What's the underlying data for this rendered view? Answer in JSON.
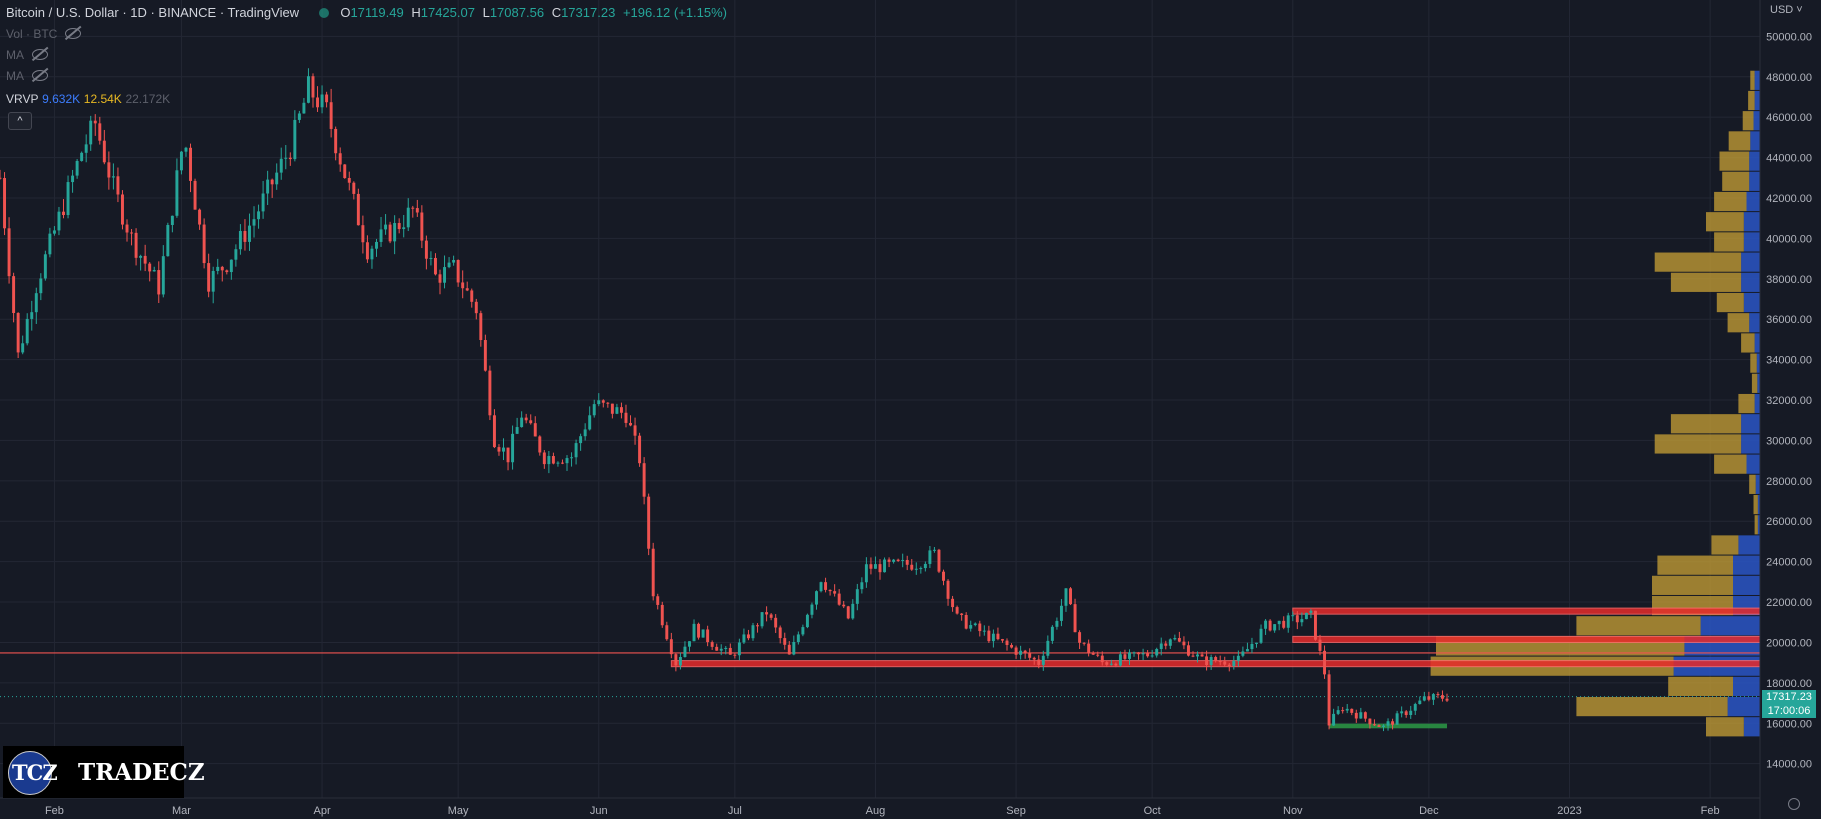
{
  "header": {
    "symbol": "Bitcoin / U.S. Dollar · 1D · BINANCE · TradingView",
    "ohlc": {
      "o": "17119.49",
      "h": "17425.07",
      "l": "17087.56",
      "c": "17317.23",
      "change": "+196.12 (+1.15%)"
    },
    "indicators": [
      "Vol · BTC",
      "MA",
      "MA"
    ],
    "vrvp": {
      "label": "VRVP",
      "up": "9.632K",
      "down": "12.54K",
      "total": "22.172K"
    },
    "collapse": "^"
  },
  "logo": {
    "mark": "TCZ",
    "name": "TRADECZ"
  },
  "axis": {
    "currency": "USD",
    "last_price": "17317.23",
    "countdown": "17:00:06"
  },
  "colors": {
    "bg": "#161a25",
    "grid": "#232734",
    "up": "#26a69a",
    "down": "#ef5350",
    "zone_red": "#e52b2b",
    "zone_green": "#2c9a45",
    "vol_up": "#2a56c6",
    "vol_down": "#c9a235"
  },
  "chart_data": {
    "type": "candlestick",
    "title": "Bitcoin / U.S. Dollar · 1D · BINANCE · TradingView",
    "x_ticks": [
      "Feb",
      "Mar",
      "Apr",
      "May",
      "Jun",
      "Jul",
      "Aug",
      "Sep",
      "Oct",
      "Nov",
      "Dec",
      "2023",
      "Feb"
    ],
    "x_tick_dates": [
      "2022-02-01",
      "2022-03-01",
      "2022-04-01",
      "2022-05-01",
      "2022-06-01",
      "2022-07-01",
      "2022-08-01",
      "2022-09-01",
      "2022-10-01",
      "2022-11-01",
      "2022-12-01",
      "2023-01-01",
      "2023-02-01"
    ],
    "x_range": [
      "2022-01-20",
      "2023-02-12"
    ],
    "y_ticks": [
      14000,
      16000,
      18000,
      20000,
      22000,
      24000,
      26000,
      28000,
      30000,
      32000,
      34000,
      36000,
      38000,
      40000,
      42000,
      44000,
      46000,
      48000,
      50000
    ],
    "ylim": [
      12300,
      51800
    ],
    "grid": true,
    "price_path": [
      [
        "2022-01-20",
        43000
      ],
      [
        "2022-01-24",
        34200
      ],
      [
        "2022-01-28",
        37700
      ],
      [
        "2022-02-07",
        44300
      ],
      [
        "2022-02-10",
        45700
      ],
      [
        "2022-02-14",
        42500
      ],
      [
        "2022-02-18",
        40000
      ],
      [
        "2022-02-24",
        37600
      ],
      [
        "2022-03-01",
        44300
      ],
      [
        "2022-03-02",
        44500
      ],
      [
        "2022-03-07",
        37900
      ],
      [
        "2022-03-11",
        38800
      ],
      [
        "2022-03-17",
        41000
      ],
      [
        "2022-03-25",
        44500
      ],
      [
        "2022-03-29",
        47400
      ],
      [
        "2022-04-02",
        46300
      ],
      [
        "2022-04-06",
        43200
      ],
      [
        "2022-04-11",
        39500
      ],
      [
        "2022-04-17",
        40500
      ],
      [
        "2022-04-21",
        41400
      ],
      [
        "2022-04-26",
        38100
      ],
      [
        "2022-04-30",
        38500
      ],
      [
        "2022-05-05",
        36500
      ],
      [
        "2022-05-09",
        30100
      ],
      [
        "2022-05-12",
        29200
      ],
      [
        "2022-05-15",
        31300
      ],
      [
        "2022-05-20",
        29200
      ],
      [
        "2022-05-26",
        29200
      ],
      [
        "2022-05-31",
        31800
      ],
      [
        "2022-06-07",
        31300
      ],
      [
        "2022-06-10",
        29100
      ],
      [
        "2022-06-13",
        22500
      ],
      [
        "2022-06-18",
        19000
      ],
      [
        "2022-06-22",
        20700
      ],
      [
        "2022-06-30",
        19300
      ],
      [
        "2022-07-08",
        21500
      ],
      [
        "2022-07-13",
        19300
      ],
      [
        "2022-07-20",
        23200
      ],
      [
        "2022-07-26",
        21200
      ],
      [
        "2022-07-30",
        23700
      ],
      [
        "2022-08-10",
        23900
      ],
      [
        "2022-08-14",
        24400
      ],
      [
        "2022-08-19",
        21200
      ],
      [
        "2022-08-26",
        20300
      ],
      [
        "2022-09-06",
        19000
      ],
      [
        "2022-09-12",
        22400
      ],
      [
        "2022-09-15",
        20000
      ],
      [
        "2022-09-20",
        19000
      ],
      [
        "2022-09-30",
        19400
      ],
      [
        "2022-10-05",
        20300
      ],
      [
        "2022-10-12",
        19100
      ],
      [
        "2022-10-20",
        19100
      ],
      [
        "2022-10-26",
        20800
      ],
      [
        "2022-11-05",
        21300
      ],
      [
        "2022-11-08",
        18500
      ],
      [
        "2022-11-09",
        16000
      ],
      [
        "2022-11-12",
        16800
      ],
      [
        "2022-11-21",
        15800
      ],
      [
        "2022-11-30",
        17200
      ],
      [
        "2022-12-05",
        17300
      ]
    ],
    "last_price": 17317.23,
    "horizontal_line": 19480,
    "dotted_line": 17317.23,
    "zones": [
      {
        "color": "red",
        "from": "2022-11-01",
        "to": "2023-02-12",
        "low": 21400,
        "high": 21700
      },
      {
        "color": "red",
        "from": "2022-11-01",
        "to": "2023-02-12",
        "low": 20000,
        "high": 20300
      },
      {
        "color": "red",
        "from": "2022-06-17",
        "to": "2023-02-12",
        "low": 18800,
        "high": 19100
      },
      {
        "color": "green",
        "from": "2022-11-09",
        "to": "2022-12-05",
        "low": 15750,
        "high": 15980
      }
    ],
    "volume_profile": [
      {
        "price": 47800,
        "up": 0.01,
        "down": 0.008
      },
      {
        "price": 46800,
        "up": 0.01,
        "down": 0.012
      },
      {
        "price": 45800,
        "up": 0.012,
        "down": 0.02
      },
      {
        "price": 44800,
        "up": 0.018,
        "down": 0.04
      },
      {
        "price": 43800,
        "up": 0.02,
        "down": 0.055
      },
      {
        "price": 42800,
        "up": 0.02,
        "down": 0.05
      },
      {
        "price": 41800,
        "up": 0.025,
        "down": 0.06
      },
      {
        "price": 40800,
        "up": 0.03,
        "down": 0.07
      },
      {
        "price": 39800,
        "up": 0.03,
        "down": 0.055
      },
      {
        "price": 38800,
        "up": 0.035,
        "down": 0.16
      },
      {
        "price": 37800,
        "up": 0.035,
        "down": 0.13
      },
      {
        "price": 36800,
        "up": 0.03,
        "down": 0.05
      },
      {
        "price": 35800,
        "up": 0.02,
        "down": 0.04
      },
      {
        "price": 34800,
        "up": 0.01,
        "down": 0.025
      },
      {
        "price": 33800,
        "up": 0.006,
        "down": 0.012
      },
      {
        "price": 32800,
        "up": 0.005,
        "down": 0.01
      },
      {
        "price": 31800,
        "up": 0.01,
        "down": 0.03
      },
      {
        "price": 30800,
        "up": 0.035,
        "down": 0.13
      },
      {
        "price": 29800,
        "up": 0.035,
        "down": 0.16
      },
      {
        "price": 28800,
        "up": 0.025,
        "down": 0.06
      },
      {
        "price": 27800,
        "up": 0.008,
        "down": 0.012
      },
      {
        "price": 26800,
        "up": 0.004,
        "down": 0.008
      },
      {
        "price": 25800,
        "up": 0.004,
        "down": 0.006
      },
      {
        "price": 24800,
        "up": 0.04,
        "down": 0.05
      },
      {
        "price": 23800,
        "up": 0.05,
        "down": 0.14
      },
      {
        "price": 22800,
        "up": 0.05,
        "down": 0.15
      },
      {
        "price": 21800,
        "up": 0.05,
        "down": 0.15
      },
      {
        "price": 20800,
        "up": 0.11,
        "down": 0.23
      },
      {
        "price": 19800,
        "up": 0.14,
        "down": 0.46
      },
      {
        "price": 18800,
        "up": 0.16,
        "down": 0.45
      },
      {
        "price": 17800,
        "up": 0.05,
        "down": 0.12
      },
      {
        "price": 16800,
        "up": 0.06,
        "down": 0.28
      },
      {
        "price": 15800,
        "up": 0.03,
        "down": 0.07
      }
    ]
  }
}
